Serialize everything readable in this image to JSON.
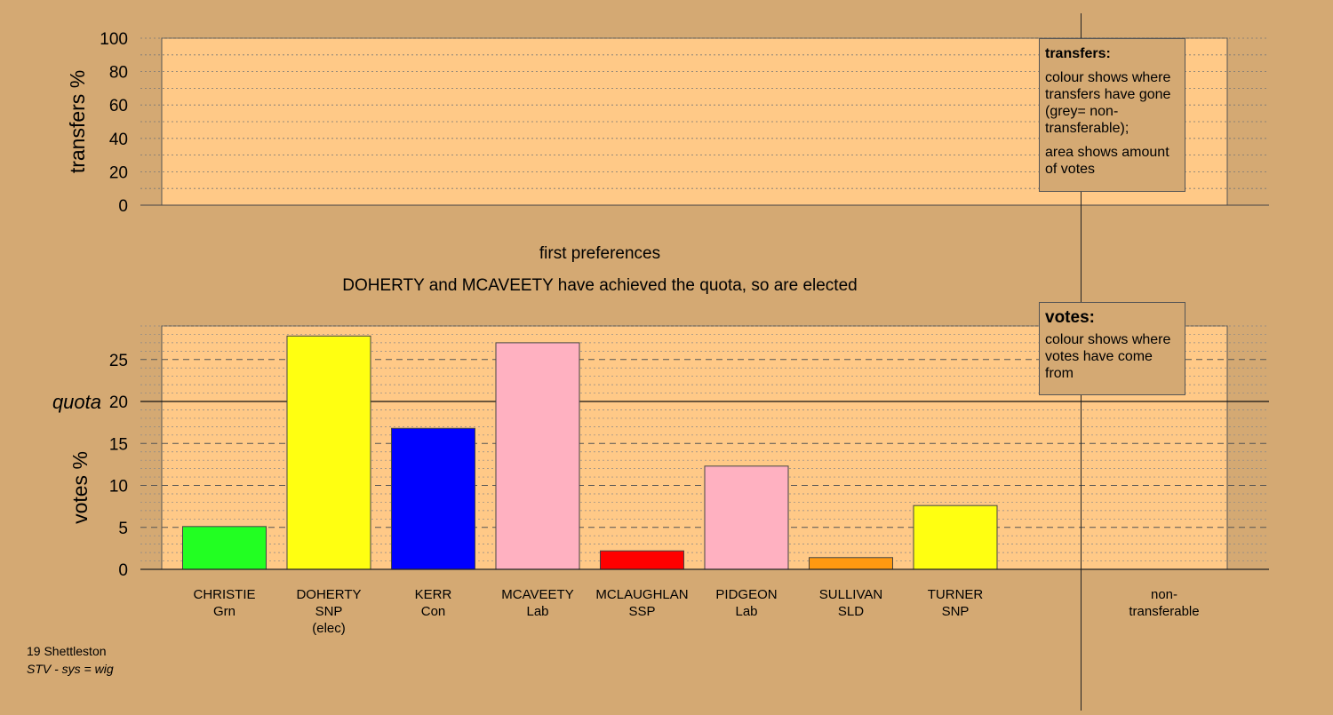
{
  "chart_data": {
    "type": "bar",
    "round_title": "first preferences",
    "subtitle": "DOHERTY and MCAVEETY have achieved the quota, so are elected",
    "categories": [
      {
        "name": "CHRISTIE",
        "party": "Grn",
        "note": ""
      },
      {
        "name": "DOHERTY",
        "party": "SNP",
        "note": "(elec)"
      },
      {
        "name": "KERR",
        "party": "Con",
        "note": ""
      },
      {
        "name": "MCAVEETY",
        "party": "Lab",
        "note": ""
      },
      {
        "name": "MCLAUGHLAN",
        "party": "SSP",
        "note": ""
      },
      {
        "name": "PIDGEON",
        "party": "Lab",
        "note": ""
      },
      {
        "name": "SULLIVAN",
        "party": "SLD",
        "note": ""
      },
      {
        "name": "TURNER",
        "party": "SNP",
        "note": ""
      }
    ],
    "values": [
      5.1,
      27.8,
      16.8,
      27.0,
      2.2,
      12.3,
      1.4,
      7.6
    ],
    "colors": [
      "#22ff22",
      "#ffff11",
      "#0000ff",
      "#ffb1c1",
      "#ff0000",
      "#ffb1c1",
      "#ff9911",
      "#ffff11"
    ],
    "non_transferable": {
      "label_line1": "non-",
      "label_line2": "transferable",
      "value": 0
    },
    "quota": 20,
    "quota_label": "quota",
    "votes_axis": {
      "ylabel": "votes %",
      "ylim": [
        0,
        29
      ],
      "ticks": [
        0,
        5,
        10,
        15,
        20,
        25
      ]
    },
    "transfers_axis": {
      "ylabel": "transfers %",
      "ylim": [
        0,
        100
      ],
      "ticks": [
        0,
        20,
        40,
        60,
        80,
        100
      ]
    },
    "transfers_values": []
  },
  "legends": {
    "transfers": {
      "title": "transfers:",
      "line1": "colour shows where transfers have gone (grey= non-transferable);",
      "line2": "area shows amount of votes"
    },
    "votes": {
      "title": "votes:",
      "line1": "colour shows where votes have come from"
    }
  },
  "footer": {
    "constituency": "19 Shettleston",
    "system": "STV - sys = wig"
  },
  "colors": {
    "background": "#d4a973",
    "plot_area": "#ffc987"
  }
}
